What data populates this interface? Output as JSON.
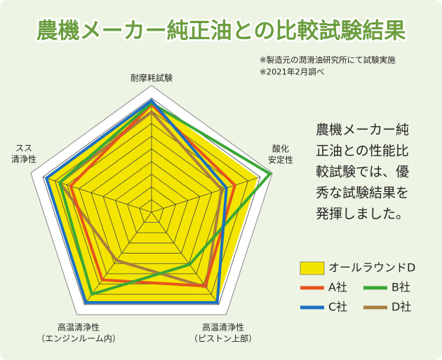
{
  "chart_data": {
    "type": "radar",
    "title": "農機メーカー純正油との比較試験結果",
    "notes": [
      "※製造元の潤滑油研究所にて試験実施",
      "※2021年2月調べ"
    ],
    "description": [
      "農機メーカー純",
      "正油との性能比",
      "較試験では、優",
      "秀な試験結果を",
      "発揮しました。"
    ],
    "categories": [
      [
        "耐摩耗試験"
      ],
      [
        "酸化",
        "安定性"
      ],
      [
        "高温清浄性",
        "（ピストン上部）"
      ],
      [
        "高温清浄性",
        "（エンジンルーム内）"
      ],
      [
        "スス",
        "清浄性"
      ]
    ],
    "rlim": [
      0,
      10
    ],
    "rticks": [
      1,
      2,
      3,
      4,
      5,
      6,
      7,
      8,
      9,
      10
    ],
    "grid": true,
    "series": [
      {
        "name": "オールラウンドD",
        "color": "#f3e500",
        "values": [
          8.8,
          8.8,
          8.8,
          8.8,
          8.8
        ]
      },
      {
        "name": "A社",
        "color": "#e6531d",
        "values": [
          8.5,
          6.9,
          7.2,
          6.6,
          6.7
        ]
      },
      {
        "name": "B社",
        "color": "#3aa735",
        "values": [
          8.6,
          9.8,
          5.1,
          8.0,
          7.6
        ]
      },
      {
        "name": "C社",
        "color": "#1b6fc0",
        "values": [
          8.8,
          6.2,
          8.8,
          8.8,
          8.7
        ]
      },
      {
        "name": "D社",
        "color": "#a97c3f",
        "values": [
          7.9,
          5.8,
          7.3,
          4.7,
          7.6
        ]
      }
    ]
  }
}
